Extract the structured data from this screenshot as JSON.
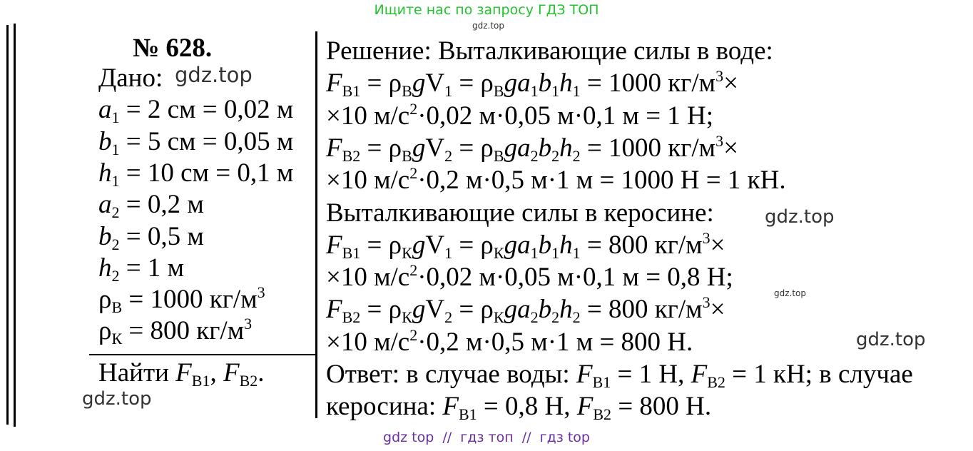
{
  "top_banner": {
    "text": "Ищите нас по запросу ГДЗ ТОП",
    "color": "#22c32e"
  },
  "bottom_banner": {
    "text": "gdz top  //  гдз топ  //  гдз top",
    "color": "#6b2fa3"
  },
  "watermarks": [
    "gdz.top",
    "gdz.top",
    "gdz.top",
    "gdz.top",
    "gdz.top",
    "gdz.top"
  ],
  "given": {
    "number": "№ 628.",
    "lines": [
      [
        {
          "t": "Дано:"
        }
      ],
      [
        {
          "t": "a",
          "s": "i"
        },
        {
          "t": "1",
          "s": "sub"
        },
        {
          "t": " = 2 см = 0,02 м"
        }
      ],
      [
        {
          "t": "b",
          "s": "i"
        },
        {
          "t": "1",
          "s": "sub"
        },
        {
          "t": " = 5 см = 0,05 м"
        }
      ],
      [
        {
          "t": "h",
          "s": "i"
        },
        {
          "t": "1",
          "s": "sub"
        },
        {
          "t": " = 10 см = 0,1 м"
        }
      ],
      [
        {
          "t": "a",
          "s": "i"
        },
        {
          "t": "2",
          "s": "sub"
        },
        {
          "t": " = 0,2 м"
        }
      ],
      [
        {
          "t": "b",
          "s": "i"
        },
        {
          "t": "2",
          "s": "sub"
        },
        {
          "t": " = 0,5 м"
        }
      ],
      [
        {
          "t": "h",
          "s": "i"
        },
        {
          "t": "2",
          "s": "sub"
        },
        {
          "t": " = 1 м"
        }
      ],
      [
        {
          "t": "ρ"
        },
        {
          "t": "В",
          "s": "sub"
        },
        {
          "t": " = 1000 кг/м"
        },
        {
          "t": "3",
          "s": "sup"
        }
      ],
      [
        {
          "t": "ρ"
        },
        {
          "t": "К",
          "s": "sub"
        },
        {
          "t": " = 800 кг/м"
        },
        {
          "t": "3",
          "s": "sup"
        }
      ]
    ],
    "find": [
      {
        "t": "Найти "
      },
      {
        "t": "F",
        "s": "i"
      },
      {
        "t": "В1",
        "s": "sub"
      },
      {
        "t": ", "
      },
      {
        "t": "F",
        "s": "i"
      },
      {
        "t": "В2",
        "s": "sub"
      },
      {
        "t": "."
      }
    ]
  },
  "solution": {
    "lines": [
      [
        {
          "t": "Решение: Выталкивающие силы в воде:"
        }
      ],
      [
        {
          "t": "F",
          "s": "i"
        },
        {
          "t": "В1",
          "s": "sub"
        },
        {
          "t": " = ρ"
        },
        {
          "t": "В",
          "s": "sub"
        },
        {
          "t": "g",
          "s": "i"
        },
        {
          "t": "V"
        },
        {
          "t": "1",
          "s": "sub"
        },
        {
          "t": " = ρ"
        },
        {
          "t": "В",
          "s": "sub"
        },
        {
          "t": "ga",
          "s": "i"
        },
        {
          "t": "1",
          "s": "sub"
        },
        {
          "t": "b",
          "s": "i"
        },
        {
          "t": "1",
          "s": "sub"
        },
        {
          "t": "h",
          "s": "i"
        },
        {
          "t": "1",
          "s": "sub"
        },
        {
          "t": " = 1000 кг/м"
        },
        {
          "t": "3",
          "s": "sup"
        },
        {
          "t": "×"
        }
      ],
      [
        {
          "t": "×10 м/с"
        },
        {
          "t": "2",
          "s": "sup"
        },
        {
          "t": "·0,02 м·0,05 м·0,1 м = 1 Н;"
        }
      ],
      [
        {
          "t": "F",
          "s": "i"
        },
        {
          "t": "В2",
          "s": "sub"
        },
        {
          "t": " = ρ"
        },
        {
          "t": "В",
          "s": "sub"
        },
        {
          "t": "g",
          "s": "i"
        },
        {
          "t": "V"
        },
        {
          "t": "2",
          "s": "sub"
        },
        {
          "t": " = ρ"
        },
        {
          "t": "В",
          "s": "sub"
        },
        {
          "t": "ga",
          "s": "i"
        },
        {
          "t": "2",
          "s": "sub"
        },
        {
          "t": "b",
          "s": "i"
        },
        {
          "t": "2",
          "s": "sub"
        },
        {
          "t": "h",
          "s": "i"
        },
        {
          "t": "2",
          "s": "sub"
        },
        {
          "t": " = 1000 кг/м"
        },
        {
          "t": "3",
          "s": "sup"
        },
        {
          "t": "×"
        }
      ],
      [
        {
          "t": "×10 м/с"
        },
        {
          "t": "2",
          "s": "sup"
        },
        {
          "t": "·0,2 м·0,5 м·1 м = 1000 Н = 1 кН."
        }
      ],
      [
        {
          "t": "Выталкивающие силы в керосине:"
        }
      ],
      [
        {
          "t": "F",
          "s": "i"
        },
        {
          "t": "В1",
          "s": "sub"
        },
        {
          "t": " = ρ"
        },
        {
          "t": "К",
          "s": "sub"
        },
        {
          "t": "g",
          "s": "i"
        },
        {
          "t": "V"
        },
        {
          "t": "1",
          "s": "sub"
        },
        {
          "t": " = ρ"
        },
        {
          "t": "К",
          "s": "sub"
        },
        {
          "t": "ga",
          "s": "i"
        },
        {
          "t": "1",
          "s": "sub"
        },
        {
          "t": "b",
          "s": "i"
        },
        {
          "t": "1",
          "s": "sub"
        },
        {
          "t": "h",
          "s": "i"
        },
        {
          "t": "1",
          "s": "sub"
        },
        {
          "t": " = 800 кг/м"
        },
        {
          "t": "3",
          "s": "sup"
        },
        {
          "t": "×"
        }
      ],
      [
        {
          "t": "×10 м/с"
        },
        {
          "t": "2",
          "s": "sup"
        },
        {
          "t": "·0,02 м·0,05 м·0,1 м = 0,8 Н;"
        }
      ],
      [
        {
          "t": "F",
          "s": "i"
        },
        {
          "t": "В2",
          "s": "sub"
        },
        {
          "t": " = ρ"
        },
        {
          "t": "К",
          "s": "sub"
        },
        {
          "t": "g",
          "s": "i"
        },
        {
          "t": "V"
        },
        {
          "t": "2",
          "s": "sub"
        },
        {
          "t": " = ρ"
        },
        {
          "t": "К",
          "s": "sub"
        },
        {
          "t": "ga",
          "s": "i"
        },
        {
          "t": "2",
          "s": "sub"
        },
        {
          "t": "b",
          "s": "i"
        },
        {
          "t": "2",
          "s": "sub"
        },
        {
          "t": "h",
          "s": "i"
        },
        {
          "t": "2",
          "s": "sub"
        },
        {
          "t": " = 800 кг/м"
        },
        {
          "t": "3",
          "s": "sup"
        },
        {
          "t": "×"
        }
      ],
      [
        {
          "t": "×10 м/с"
        },
        {
          "t": "2",
          "s": "sup"
        },
        {
          "t": "·0,2 м·0,5 м·1 м = 800 Н."
        }
      ],
      [
        {
          "t": "Ответ: в случае воды: "
        },
        {
          "t": "F",
          "s": "i"
        },
        {
          "t": "В1",
          "s": "sub"
        },
        {
          "t": " = 1 Н, "
        },
        {
          "t": "F",
          "s": "i"
        },
        {
          "t": "В2",
          "s": "sub"
        },
        {
          "t": " = 1 кН; в случае"
        }
      ],
      [
        {
          "t": "керосина: "
        },
        {
          "t": "F",
          "s": "i"
        },
        {
          "t": "В1",
          "s": "sub"
        },
        {
          "t": " = 0,8 Н, "
        },
        {
          "t": "F",
          "s": "i"
        },
        {
          "t": "В2",
          "s": "sub"
        },
        {
          "t": " = 800 Н."
        }
      ]
    ]
  }
}
